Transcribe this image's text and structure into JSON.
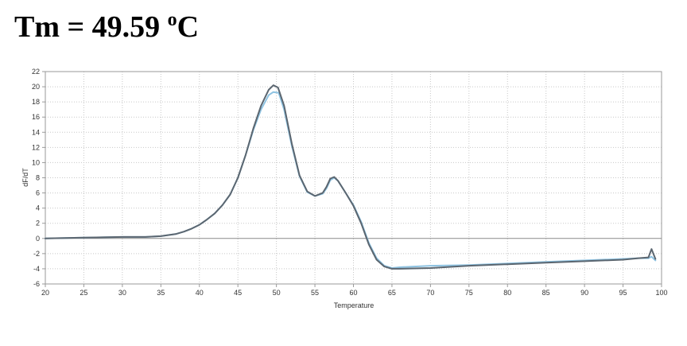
{
  "header": {
    "title_prefix": "Tm = 49.59 ",
    "title_degree": "o",
    "title_unit": "C"
  },
  "chart_data": {
    "type": "line",
    "title": "",
    "xlabel": "Temperature",
    "ylabel": "dF/dT",
    "xlim": [
      20,
      100
    ],
    "ylim": [
      -6,
      22
    ],
    "x_ticks": [
      20,
      25,
      30,
      35,
      40,
      45,
      50,
      55,
      60,
      65,
      70,
      75,
      80,
      85,
      90,
      95,
      100
    ],
    "y_ticks": [
      -6,
      -4,
      -2,
      0,
      2,
      4,
      6,
      8,
      10,
      12,
      14,
      16,
      18,
      20,
      22
    ],
    "grid": true,
    "legend": "none",
    "series": [
      {
        "color": "#5b6670",
        "x": [
          20,
          25,
          30,
          33,
          35,
          37,
          38,
          39,
          40,
          41,
          42,
          43,
          44,
          45,
          46,
          47,
          48,
          49,
          49.6,
          50.2,
          51,
          52,
          53,
          54,
          55,
          56,
          56.5,
          57,
          57.5,
          58,
          59,
          60,
          61,
          62,
          63,
          64,
          65,
          66,
          70,
          75,
          80,
          85,
          90,
          95,
          97,
          98.3,
          98.7,
          99.2
        ],
        "y": [
          0.0,
          0.1,
          0.2,
          0.2,
          0.3,
          0.6,
          0.9,
          1.3,
          1.8,
          2.5,
          3.3,
          4.4,
          5.8,
          8.0,
          11.0,
          14.5,
          17.5,
          19.6,
          20.2,
          19.9,
          17.5,
          12.5,
          8.3,
          6.2,
          5.6,
          6.0,
          6.8,
          7.9,
          8.1,
          7.6,
          6.0,
          4.3,
          2.0,
          -0.8,
          -2.8,
          -3.7,
          -4.0,
          -4.0,
          -3.9,
          -3.6,
          -3.4,
          -3.2,
          -3.0,
          -2.8,
          -2.6,
          -2.5,
          -1.4,
          -2.7
        ]
      },
      {
        "color": "#8ec3e2",
        "x": [
          20,
          25,
          30,
          33,
          35,
          37,
          38,
          39,
          40,
          41,
          42,
          43,
          44,
          45,
          46,
          47,
          48,
          49,
          49.6,
          50.3,
          51,
          52,
          53,
          54,
          55,
          56,
          56.5,
          57,
          57.5,
          58,
          59,
          60,
          61,
          62,
          63,
          64,
          65,
          66,
          70,
          75,
          80,
          85,
          90,
          95,
          97,
          98.3,
          98.7,
          99.2
        ],
        "y": [
          0.0,
          0.1,
          0.2,
          0.2,
          0.3,
          0.6,
          0.9,
          1.3,
          1.8,
          2.5,
          3.3,
          4.4,
          5.8,
          8.0,
          11.0,
          14.3,
          17.0,
          18.9,
          19.3,
          19.2,
          17.0,
          12.2,
          8.2,
          6.1,
          5.6,
          5.9,
          6.6,
          7.7,
          8.0,
          7.6,
          6.0,
          4.4,
          2.2,
          -0.6,
          -2.6,
          -3.6,
          -3.9,
          -3.8,
          -3.6,
          -3.5,
          -3.3,
          -3.1,
          -2.9,
          -2.7,
          -2.6,
          -2.6,
          -2.4,
          -2.9
        ]
      }
    ]
  }
}
